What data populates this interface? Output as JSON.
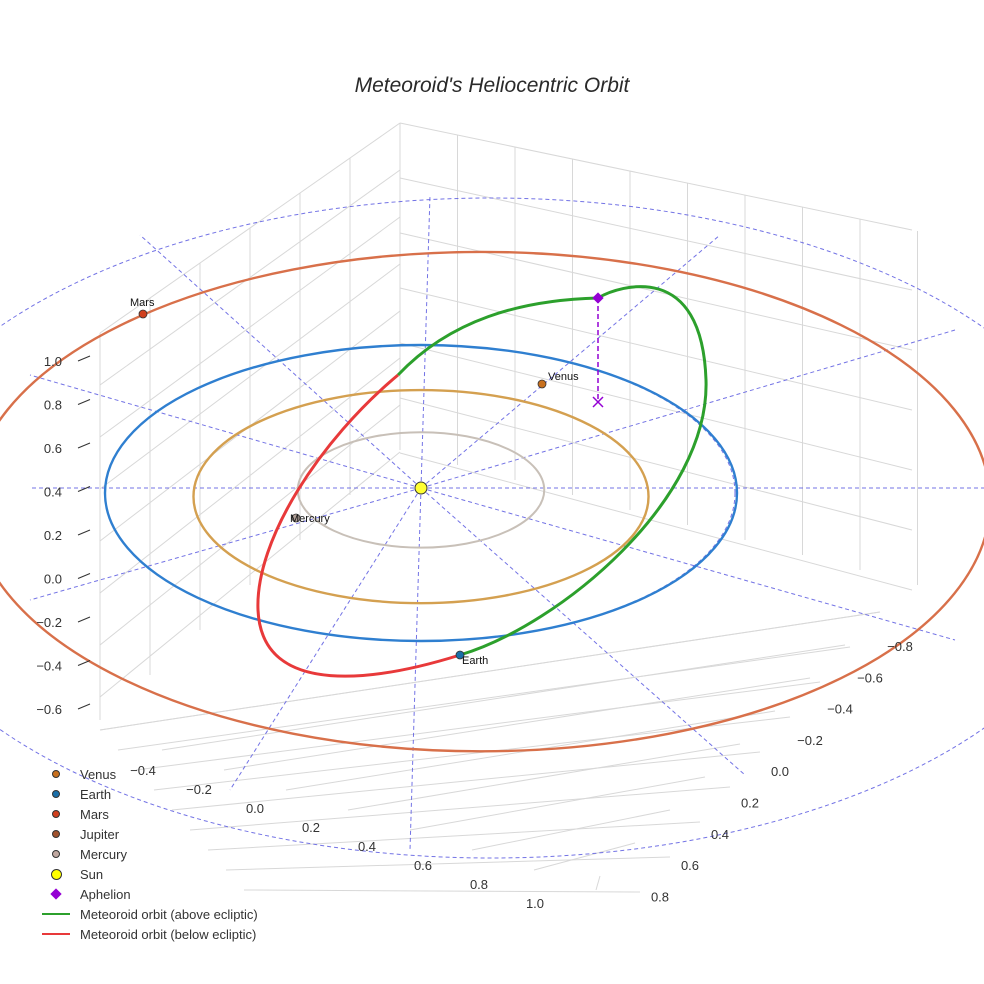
{
  "chart_data": {
    "type": "scatter",
    "subtype": "3d-orbit",
    "title": "Meteoroid's Heliocentric Orbit",
    "axes": {
      "x_ticks": [
        "−0.4",
        "−0.2",
        "0.0",
        "0.2",
        "0.4",
        "0.6",
        "0.8",
        "1.0"
      ],
      "y_ticks": [
        "−0.8",
        "−0.6",
        "−0.4",
        "−0.2",
        "0.0",
        "0.2",
        "0.4",
        "0.6",
        "0.8"
      ],
      "z_ticks": [
        "−0.6",
        "−0.4",
        "−0.2",
        "0.0",
        "0.2",
        "0.4",
        "0.6",
        "0.8",
        "1.0"
      ],
      "grid": true
    },
    "planets": [
      {
        "name": "Venus",
        "label": "Venus",
        "orbit_radius_au": 0.72,
        "color": "#d4a050",
        "marker_color": "#c8701e"
      },
      {
        "name": "Earth",
        "label": "Earth",
        "orbit_radius_au": 1.0,
        "color": "#2f7fd0",
        "marker_color": "#1a6fa8"
      },
      {
        "name": "Mars",
        "label": "Mars",
        "orbit_radius_au": 1.52,
        "color": "#d8704a",
        "marker_color": "#d0401e"
      },
      {
        "name": "Mercury",
        "label": "Mercury",
        "orbit_radius_au": 0.39,
        "color": "#c8c0b8",
        "marker_color": "#b0a098"
      }
    ],
    "sun": {
      "label": "Sun",
      "color": "#ffff33"
    },
    "aphelion": {
      "label": "Aphelion",
      "color": "#9400d3"
    },
    "meteoroid_orbit": {
      "above_label": "Meteoroid orbit (above ecliptic)",
      "below_label": "Meteoroid orbit (below ecliptic)",
      "above_color": "#2ca02c",
      "below_color": "#e8393a"
    },
    "legend_position": "bottom-left",
    "legend": [
      {
        "label": "Venus",
        "symbol": "dot",
        "color": "#c8701e"
      },
      {
        "label": "Earth",
        "symbol": "dot",
        "color": "#1a6fa8"
      },
      {
        "label": "Mars",
        "symbol": "dot",
        "color": "#d0401e"
      },
      {
        "label": "Jupiter",
        "symbol": "dot",
        "color": "#a0522d"
      },
      {
        "label": "Mercury",
        "symbol": "dot",
        "color": "#c0a8a0"
      },
      {
        "label": "Sun",
        "symbol": "bigdot",
        "color": "#ffff00"
      },
      {
        "label": "Aphelion",
        "symbol": "diamond",
        "color": "#9400d3"
      },
      {
        "label": "Meteoroid orbit (above ecliptic)",
        "symbol": "line",
        "color": "#2ca02c"
      },
      {
        "label": "Meteoroid orbit (below ecliptic)",
        "symbol": "line",
        "color": "#e8393a"
      }
    ]
  }
}
